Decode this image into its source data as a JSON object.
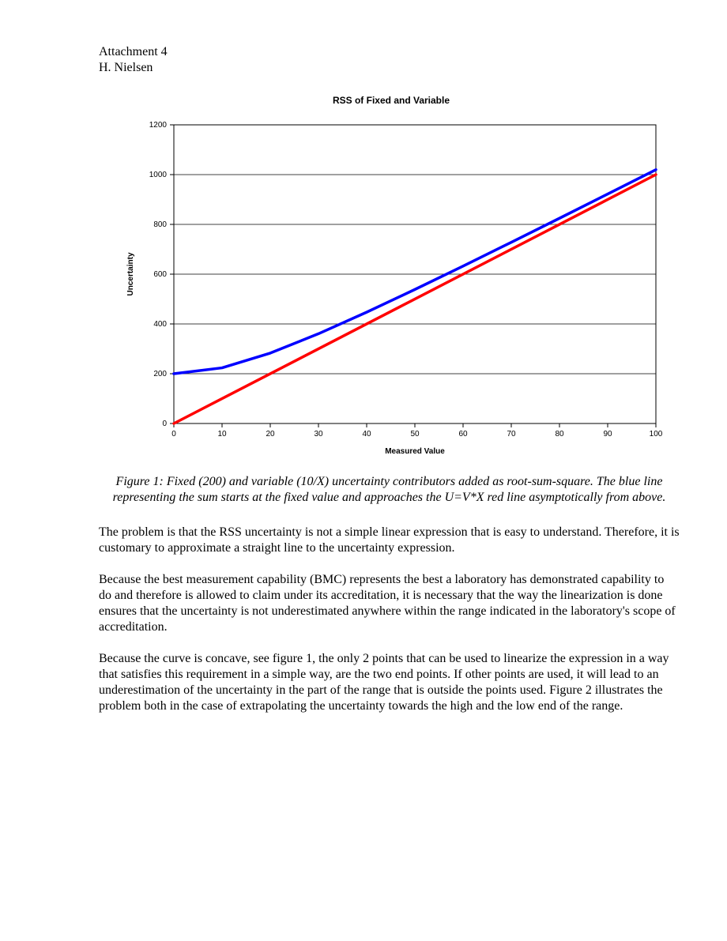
{
  "header": {
    "line1": "Attachment 4",
    "line2": "H. Nielsen"
  },
  "chart": {
    "type": "line",
    "title": "RSS of Fixed and Variable",
    "xlabel": "Measured Value",
    "ylabel": "Uncertainty",
    "xlim": [
      0,
      100
    ],
    "ylim": [
      0,
      1200
    ],
    "xtick_step": 10,
    "ytick_step": 200,
    "xticks": [
      0,
      10,
      20,
      30,
      40,
      50,
      60,
      70,
      80,
      90,
      100
    ],
    "yticks": [
      0,
      200,
      400,
      600,
      800,
      1000,
      1200
    ],
    "background_color": "#ffffff",
    "plot_border_color": "#000000",
    "grid_color": "#000000",
    "grid_line_width": 0.7,
    "label_fontsize": 10,
    "tick_fontsize": 10,
    "series": [
      {
        "name": "RSS (blue)",
        "color": "#0000ff",
        "line_width": 3.5,
        "x": [
          0,
          10,
          20,
          30,
          40,
          50,
          60,
          70,
          80,
          90,
          100
        ],
        "y": [
          200,
          223.6,
          282.8,
          360.6,
          447.2,
          538.5,
          632.5,
          728.0,
          824.6,
          922.0,
          1019.8
        ]
      },
      {
        "name": "U=V*X (red)",
        "color": "#ff0000",
        "line_width": 3.5,
        "x": [
          0,
          100
        ],
        "y": [
          0,
          1000
        ]
      }
    ]
  },
  "caption": "Figure 1: Fixed (200) and variable (10/X) uncertainty contributors added as root-sum-square. The blue line representing the sum starts at the fixed value and approaches the U=V*X red line asymptotically from above.",
  "paragraphs": {
    "p1": "The problem is that the RSS uncertainty is not a simple linear expression that is easy to understand. Therefore, it is customary to approximate a straight line to the uncertainty expression.",
    "p2": "Because the best measurement capability (BMC) represents the best a laboratory has demonstrated capability to do and therefore is allowed to claim under its accreditation, it is necessary that the way the linearization is done ensures that the uncertainty is not underestimated anywhere within the range indicated in the laboratory's scope of accreditation.",
    "p3": "Because the curve is concave, see figure 1, the only 2 points that can be used to linearize the expression in a way that satisfies this requirement in a simple way, are the two end points. If other points are used, it will lead to an underestimation of the uncertainty in the part of the range that is outside the points used. Figure 2 illustrates the problem both in the case of extrapolating the uncertainty towards the high and the low end of the range."
  }
}
